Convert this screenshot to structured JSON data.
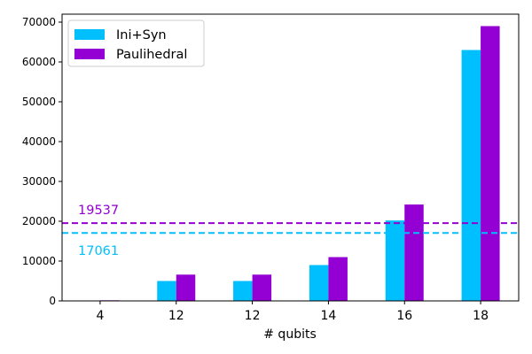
{
  "chart_data": {
    "type": "bar",
    "title": "",
    "xlabel": "# qubits",
    "ylabel": "",
    "categories": [
      "4",
      "12",
      "12",
      "14",
      "16",
      "18"
    ],
    "series": [
      {
        "name": "Ini+Syn",
        "color": "#00BFFF",
        "values": [
          0,
          5000,
          5000,
          9000,
          20200,
          63000
        ]
      },
      {
        "name": "Paulihedral",
        "color": "#9400D3",
        "values": [
          150,
          6600,
          6600,
          11000,
          24200,
          69000
        ]
      }
    ],
    "reference_lines": [
      {
        "value": 19537,
        "label": "19537",
        "color": "#9400D3",
        "style": "dashed"
      },
      {
        "value": 17061,
        "label": "17061",
        "color": "#00BFFF",
        "style": "dashed"
      }
    ],
    "ylim": [
      0,
      72000
    ],
    "yticks": [
      0,
      10000,
      20000,
      30000,
      40000,
      50000,
      60000,
      70000
    ],
    "grid": false,
    "legend_position": "top-left"
  }
}
